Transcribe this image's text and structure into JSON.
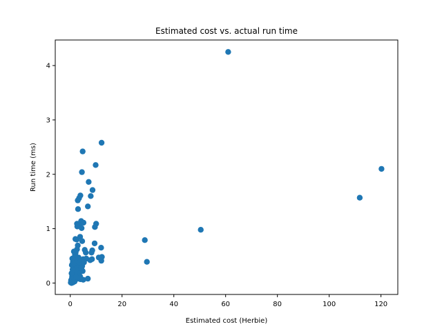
{
  "chart_data": {
    "type": "scatter",
    "title": "Estimated cost vs. actual run time",
    "xlabel": "Estimated cost (Herbie)",
    "ylabel": "Run time (ms)",
    "xlim": [
      -5.8,
      126.5
    ],
    "ylim": [
      -0.21,
      4.47
    ],
    "xticks": [
      0,
      20,
      40,
      60,
      80,
      100,
      120
    ],
    "yticks": [
      0,
      1,
      2,
      3,
      4
    ],
    "grid": false,
    "color": "#1f77b4",
    "points": [
      [
        61.0,
        4.25
      ],
      [
        120.2,
        2.1
      ],
      [
        111.8,
        1.57
      ],
      [
        50.4,
        0.98
      ],
      [
        28.8,
        0.79
      ],
      [
        29.6,
        0.39
      ],
      [
        12.1,
        2.58
      ],
      [
        4.8,
        2.42
      ],
      [
        9.8,
        2.17
      ],
      [
        4.5,
        2.04
      ],
      [
        7.1,
        1.86
      ],
      [
        8.6,
        1.71
      ],
      [
        3.9,
        1.61
      ],
      [
        3.4,
        1.56
      ],
      [
        2.9,
        1.52
      ],
      [
        7.9,
        1.6
      ],
      [
        6.8,
        1.41
      ],
      [
        3.0,
        1.36
      ],
      [
        4.2,
        1.14
      ],
      [
        5.1,
        1.11
      ],
      [
        2.6,
        1.09
      ],
      [
        3.6,
        1.06
      ],
      [
        2.7,
        1.04
      ],
      [
        4.4,
        1.01
      ],
      [
        10.0,
        1.09
      ],
      [
        9.5,
        1.03
      ],
      [
        3.8,
        0.85
      ],
      [
        2.0,
        0.81
      ],
      [
        2.5,
        0.8
      ],
      [
        4.6,
        0.77
      ],
      [
        9.4,
        0.73
      ],
      [
        11.9,
        0.65
      ],
      [
        2.9,
        0.69
      ],
      [
        1.4,
        0.58
      ],
      [
        2.6,
        0.62
      ],
      [
        5.6,
        0.61
      ],
      [
        8.5,
        0.6
      ],
      [
        6.0,
        0.56
      ],
      [
        8.2,
        0.56
      ],
      [
        11.0,
        0.47
      ],
      [
        12.2,
        0.48
      ],
      [
        12.0,
        0.41
      ],
      [
        7.7,
        0.42
      ],
      [
        8.4,
        0.44
      ],
      [
        5.0,
        0.44
      ],
      [
        6.2,
        0.45
      ],
      [
        3.2,
        0.47
      ],
      [
        2.2,
        0.49
      ],
      [
        1.3,
        0.42
      ],
      [
        1.6,
        0.37
      ],
      [
        2.3,
        0.34
      ],
      [
        4.1,
        0.35
      ],
      [
        3.2,
        0.33
      ],
      [
        4.6,
        0.31
      ],
      [
        1.5,
        0.3
      ],
      [
        1.1,
        0.27
      ],
      [
        2.0,
        0.26
      ],
      [
        3.1,
        0.24
      ],
      [
        1.2,
        0.21
      ],
      [
        2.5,
        0.19
      ],
      [
        4.8,
        0.22
      ],
      [
        3.4,
        0.17
      ],
      [
        1.9,
        0.15
      ],
      [
        0.8,
        0.14
      ],
      [
        1.3,
        0.11
      ],
      [
        0.6,
        0.08
      ],
      [
        2.0,
        0.07
      ],
      [
        2.9,
        0.08
      ],
      [
        3.9,
        0.07
      ],
      [
        5.0,
        0.06
      ],
      [
        6.8,
        0.08
      ],
      [
        1.6,
        0.05
      ],
      [
        0.9,
        0.04
      ],
      [
        0.4,
        0.03
      ],
      [
        1.2,
        0.02
      ],
      [
        0.2,
        0.01
      ],
      [
        0.5,
        0.0
      ],
      [
        1.0,
        0.01
      ],
      [
        0.3,
        0.05
      ],
      [
        0.7,
        0.12
      ],
      [
        0.5,
        0.18
      ],
      [
        0.9,
        0.25
      ],
      [
        0.6,
        0.33
      ],
      [
        1.0,
        0.39
      ],
      [
        0.8,
        0.45
      ],
      [
        1.8,
        0.52
      ],
      [
        2.1,
        0.56
      ],
      [
        1.5,
        0.36
      ],
      [
        2.7,
        0.41
      ],
      [
        3.6,
        0.38
      ],
      [
        4.3,
        0.28
      ],
      [
        3.8,
        0.12
      ],
      [
        4.4,
        0.42
      ],
      [
        5.3,
        0.38
      ],
      [
        1.7,
        0.03
      ],
      [
        2.3,
        0.11
      ]
    ]
  }
}
